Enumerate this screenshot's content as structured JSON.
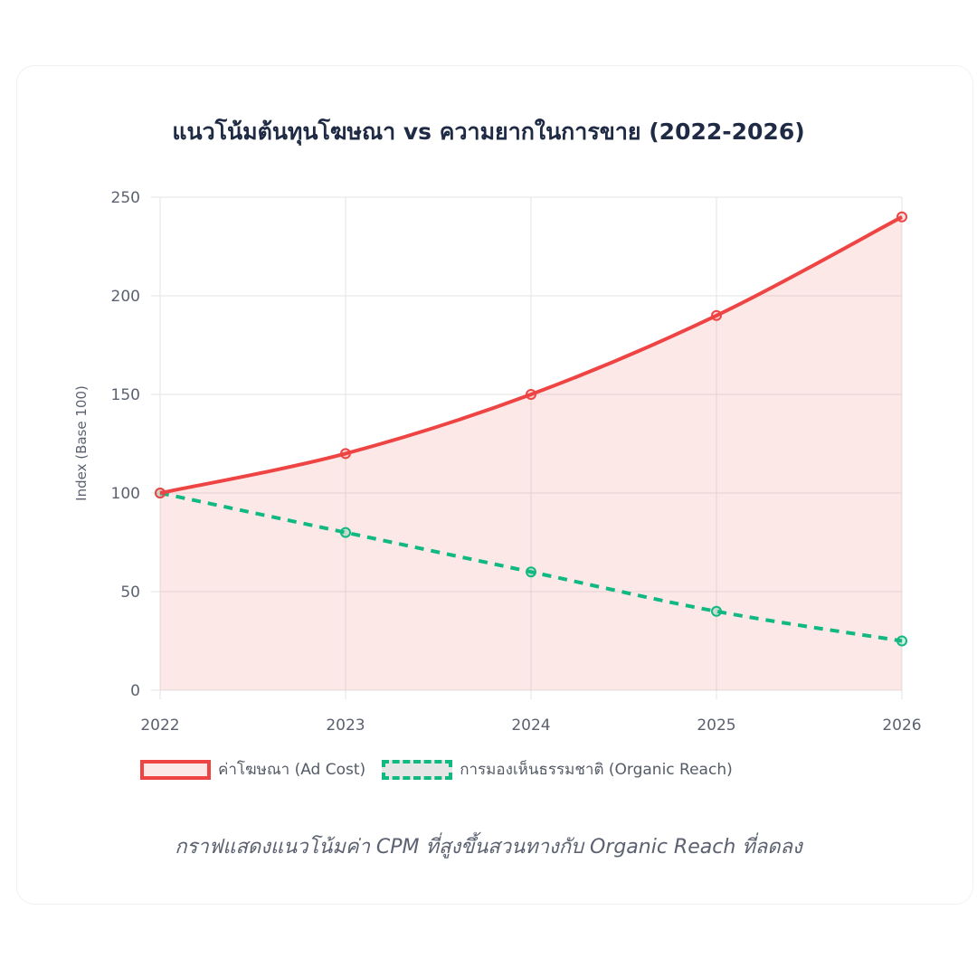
{
  "header": {
    "title": "แนวโน้มต้นทุนโฆษณา vs ความยากในการขาย (2022-2026)"
  },
  "legend": {
    "items": [
      {
        "label": "ค่าโฆษณา (Ad Cost)",
        "color": "#ef4444",
        "style": "solid"
      },
      {
        "label": "การมองเห็นธรรมชาติ (Organic Reach)",
        "color": "#10b981",
        "style": "dashed"
      }
    ]
  },
  "caption": "กราฟแสดงแนวโน้มค่า CPM ที่สูงขึ้นสวนทางกับ Organic Reach ที่ลดลง",
  "axes": {
    "y_ticks": [
      "0",
      "50",
      "100",
      "150",
      "200",
      "250"
    ],
    "x_ticks": [
      "2022",
      "2023",
      "2024",
      "2025",
      "2026"
    ],
    "y_label": "Index (Base 100)"
  },
  "chart_data": {
    "type": "line",
    "title": "แนวโน้มต้นทุนโฆษณา vs ความยากในการขาย (2022-2026)",
    "x": [
      "2022",
      "2023",
      "2024",
      "2025",
      "2026"
    ],
    "series": [
      {
        "name": "ค่าโฆษณา (Ad Cost)",
        "values": [
          100,
          120,
          150,
          190,
          240
        ],
        "color": "#ef4444",
        "fill": true,
        "dashed": false
      },
      {
        "name": "การมองเห็นธรรมชาติ (Organic Reach)",
        "values": [
          100,
          80,
          60,
          40,
          25
        ],
        "color": "#10b981",
        "fill": false,
        "dashed": true
      }
    ],
    "xlabel": "",
    "ylabel": "Index (Base 100)",
    "ylim": [
      0,
      250
    ],
    "grid": true,
    "legend_position": "bottom",
    "annotation": "กราฟแสดงแนวโน้มค่า CPM ที่สูงขึ้นสวนทางกับ Organic Reach ที่ลดลง"
  }
}
